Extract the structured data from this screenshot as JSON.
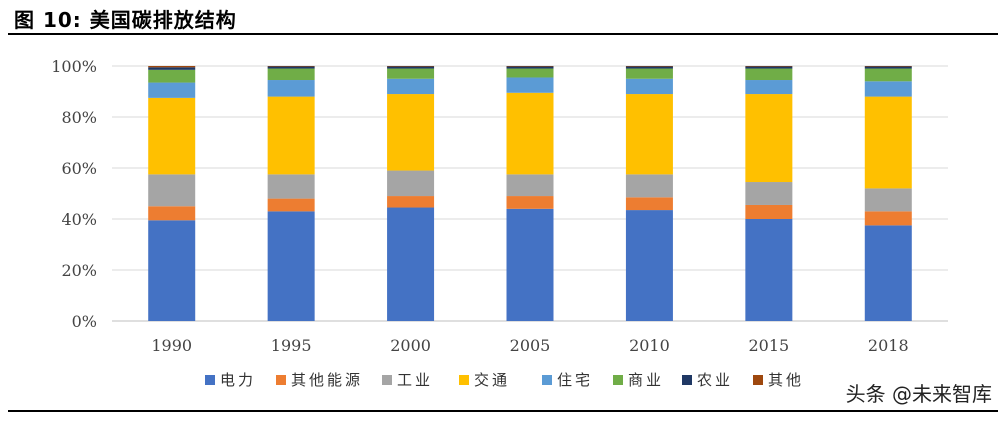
{
  "figure_title": "图 10:  美国碳排放结构",
  "watermark": "头条 @未来智库",
  "chart_data": {
    "type": "bar",
    "stacked": true,
    "categories": [
      "1990",
      "1995",
      "2000",
      "2005",
      "2010",
      "2015",
      "2018"
    ],
    "ylim": [
      0,
      100
    ],
    "yticks": [
      "0%",
      "20%",
      "40%",
      "60%",
      "80%",
      "100%"
    ],
    "grid": true,
    "legend_placement": "bottom",
    "series": [
      {
        "name": "电力",
        "color": "#4472C4",
        "values": [
          39.5,
          43.0,
          44.5,
          44.0,
          43.5,
          40.0,
          37.5
        ]
      },
      {
        "name": "其他能源",
        "color": "#ED7D31",
        "values": [
          5.5,
          5.0,
          4.5,
          5.0,
          5.0,
          5.5,
          5.5
        ]
      },
      {
        "name": "工业",
        "color": "#A5A5A5",
        "values": [
          12.5,
          9.5,
          10.0,
          8.5,
          9.0,
          9.0,
          9.0
        ]
      },
      {
        "name": "交通",
        "color": "#FFC000",
        "values": [
          30.0,
          30.5,
          30.0,
          32.0,
          31.5,
          34.5,
          36.0
        ]
      },
      {
        "name": "住宅",
        "color": "#5B9BD5",
        "values": [
          6.0,
          6.5,
          6.0,
          6.0,
          6.0,
          5.5,
          6.0
        ]
      },
      {
        "name": "商业",
        "color": "#70AD47",
        "values": [
          5.0,
          4.5,
          4.0,
          3.5,
          4.0,
          4.5,
          5.0
        ]
      },
      {
        "name": "农业",
        "color": "#1F3864",
        "values": [
          1.0,
          0.8,
          0.8,
          0.8,
          0.8,
          0.8,
          0.8
        ]
      },
      {
        "name": "其他",
        "color": "#9E480E",
        "values": [
          0.5,
          0.2,
          0.2,
          0.2,
          0.2,
          0.2,
          0.2
        ]
      }
    ]
  }
}
